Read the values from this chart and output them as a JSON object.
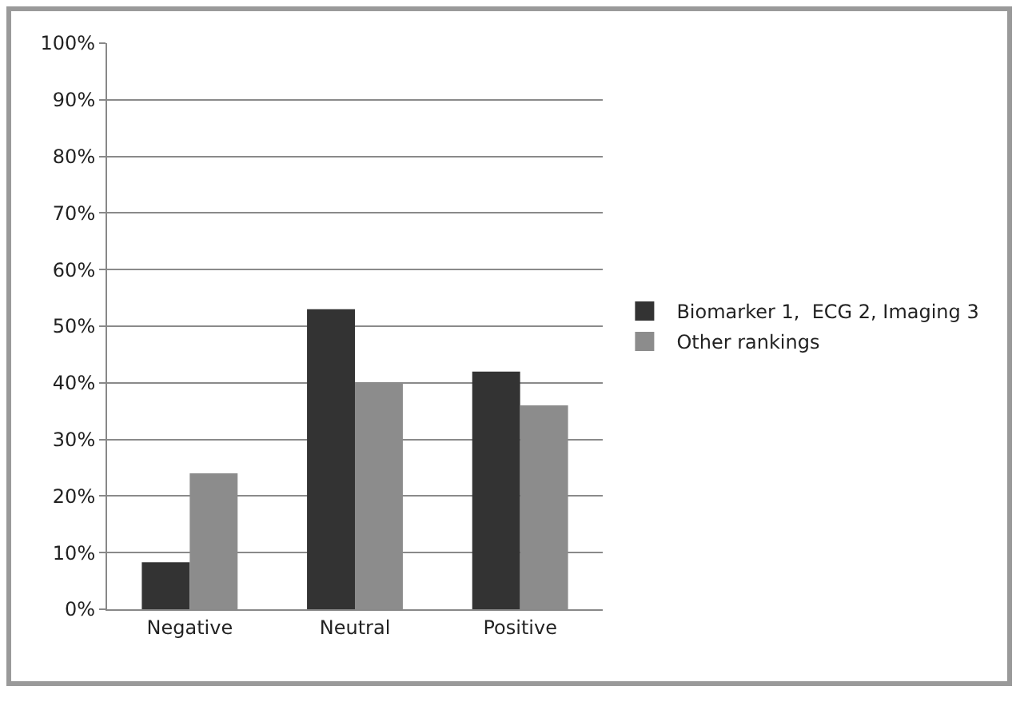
{
  "chart_data": {
    "type": "bar",
    "categories": [
      "Negative",
      "Neutral",
      "Positive"
    ],
    "series": [
      {
        "name": "Biomarker 1,  ECG 2, Imaging 3",
        "color": "#333333",
        "values": [
          8.3,
          53,
          42
        ]
      },
      {
        "name": "Other rankings",
        "color": "#8c8c8c",
        "values": [
          24,
          40,
          36
        ]
      }
    ],
    "ylim": [
      0,
      100
    ],
    "yticks": [
      {
        "value": 0,
        "label": "0%"
      },
      {
        "value": 10,
        "label": "10%"
      },
      {
        "value": 20,
        "label": "20%"
      },
      {
        "value": 30,
        "label": "30%"
      },
      {
        "value": 40,
        "label": "40%"
      },
      {
        "value": 50,
        "label": "50%"
      },
      {
        "value": 60,
        "label": "60%"
      },
      {
        "value": 70,
        "label": "70%"
      },
      {
        "value": 80,
        "label": "80%"
      },
      {
        "value": 90,
        "label": "90%"
      },
      {
        "value": 100,
        "label": "100%"
      }
    ],
    "grid": "y",
    "legend": "right"
  }
}
